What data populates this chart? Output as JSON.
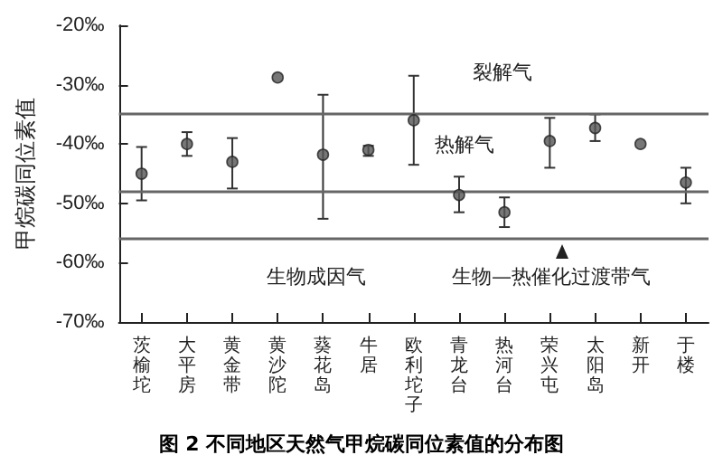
{
  "chart_data": {
    "type": "scatter",
    "title": "图 2 不同地区天然气甲烷碳同位素值的分布图",
    "ylabel": "甲烷碳同位素值",
    "categories": [
      "茨榆坨",
      "大平房",
      "黄金带",
      "黄沙陀",
      "葵花岛",
      "牛居",
      "欧利坨子",
      "青龙台",
      "热河台",
      "荣兴屯",
      "太阳岛",
      "新开",
      "于楼"
    ],
    "values": [
      -45,
      -40,
      -43,
      -28.8,
      -41.8,
      -41,
      -36,
      -48.6,
      -51.5,
      -39.5,
      -37.3,
      -40,
      -46.5
    ],
    "errors": [
      [
        -49.5,
        -40.5
      ],
      [
        -42,
        -38
      ],
      [
        -47.5,
        -39
      ],
      null,
      [
        -52.6,
        -31.7
      ],
      [
        -42,
        -40.3
      ],
      [
        -43.5,
        -28.5
      ],
      [
        -51.5,
        -45.5
      ],
      [
        -54,
        -49
      ],
      [
        -44,
        -35.6
      ],
      [
        -39.5,
        -35
      ],
      null,
      [
        -50,
        -44
      ]
    ],
    "color": "#555555",
    "marker": "circle",
    "ylim": [
      -70,
      -20
    ],
    "yticks": [
      {
        "value": -70,
        "label": "-70‰"
      },
      {
        "value": -60,
        "label": "-60‰"
      },
      {
        "value": -50,
        "label": "-50‰"
      },
      {
        "value": -40,
        "label": "-40‰"
      },
      {
        "value": -30,
        "label": "-30‰"
      },
      {
        "value": -20,
        "label": "-20‰"
      }
    ],
    "grid": false,
    "ref_lines": [
      {
        "axis": "y",
        "value": -35,
        "color": "#666666"
      },
      {
        "axis": "y",
        "value": -48,
        "color": "#666666"
      },
      {
        "axis": "y",
        "value": -56,
        "color": "#666666"
      }
    ],
    "annotations": [
      "裂解气",
      "热解气",
      "生物成因气",
      "生物—热催化过渡带气"
    ]
  }
}
